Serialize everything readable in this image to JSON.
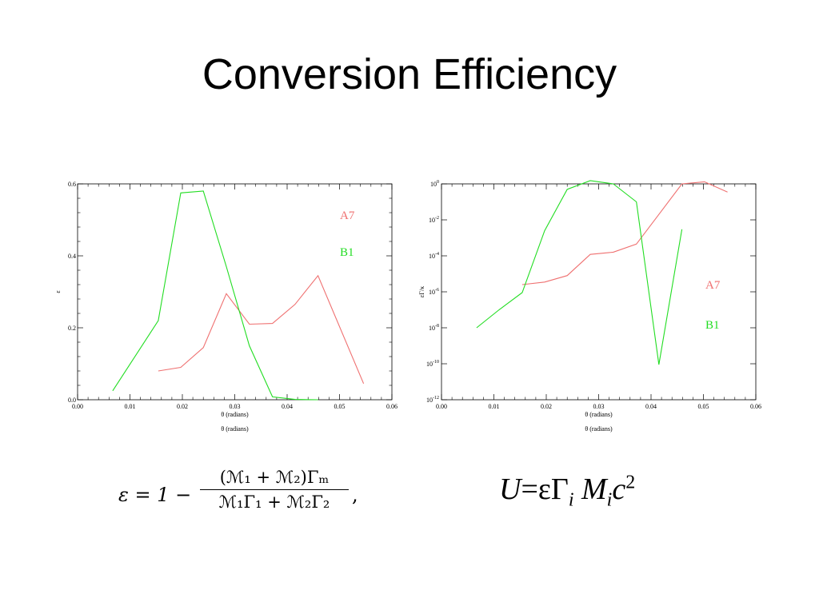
{
  "slide": {
    "title": "Conversion Efficiency"
  },
  "colors": {
    "A7": "#ef7070",
    "B1": "#22dd22",
    "axis": "#000000"
  },
  "chart_data": [
    {
      "type": "line",
      "xlabel": "θ (radians)",
      "xlabel_below": "θ (radians)",
      "ylabel": "ε",
      "xlim": [
        0.0,
        0.06
      ],
      "ylim": [
        0.0,
        0.6
      ],
      "x_ticks": [
        "0.00",
        "0.01",
        "0.02",
        "0.03",
        "0.04",
        "0.05",
        "0.06"
      ],
      "y_ticks": [
        "0.0",
        "0.2",
        "0.4",
        "0.6"
      ],
      "legend": [
        "A7",
        "B1"
      ],
      "series": [
        {
          "name": "A7",
          "x": [
            0.0154,
            0.0197,
            0.024,
            0.0284,
            0.0328,
            0.0372,
            0.0415,
            0.0459,
            0.0546
          ],
          "y": [
            0.08,
            0.09,
            0.145,
            0.295,
            0.21,
            0.212,
            0.265,
            0.345,
            0.045
          ]
        },
        {
          "name": "B1",
          "x": [
            0.0067,
            0.0154,
            0.0197,
            0.024,
            0.0284,
            0.0328,
            0.0372,
            0.0415,
            0.0459
          ],
          "y": [
            0.025,
            0.22,
            0.575,
            0.58,
            0.37,
            0.15,
            0.008,
            0.001,
            0.0
          ]
        }
      ]
    },
    {
      "type": "line",
      "yscale": "log",
      "xlabel": "θ (radians)",
      "xlabel_below": "θ (radians)",
      "ylabel": "εΓ/κ",
      "xlim": [
        0.0,
        0.06
      ],
      "ylim": [
        1e-12,
        1
      ],
      "x_ticks": [
        "0.00",
        "0.01",
        "0.02",
        "0.03",
        "0.04",
        "0.05",
        "0.06"
      ],
      "y_ticks": [
        "10^0",
        "10^-2",
        "10^-4",
        "10^-6",
        "10^-8",
        "10^-10",
        "10^-12"
      ],
      "legend": [
        "A7",
        "B1"
      ],
      "series": [
        {
          "name": "A7",
          "x": [
            0.0154,
            0.0197,
            0.024,
            0.0284,
            0.0328,
            0.0372,
            0.0415,
            0.0459,
            0.0502,
            0.0546
          ],
          "y": [
            2.5e-06,
            3.5e-06,
            8e-06,
            0.00012,
            0.00016,
            0.00045,
            0.02,
            1.0,
            1.3,
            0.35
          ]
        },
        {
          "name": "B1",
          "x": [
            0.0067,
            0.011,
            0.0154,
            0.0197,
            0.024,
            0.0284,
            0.0328,
            0.0372,
            0.0415,
            0.0459
          ],
          "y": [
            1e-08,
            1e-07,
            9e-07,
            0.0025,
            0.5,
            1.5,
            1.0,
            0.1,
            9e-11,
            0.003
          ]
        }
      ]
    }
  ],
  "formulas": {
    "efficiency": {
      "lhs": "ε = 1 −",
      "numerator": "(ℳ₁ + ℳ₂)Γₘ",
      "denominator": "ℳ₁Γ₁ + ℳ₂Γ₂",
      "tail": ","
    },
    "energy": {
      "U": "U",
      "eq": "=εΓ",
      "i1": "i",
      "M": "M",
      "i2": "i",
      "c": "c",
      "exp": "2"
    }
  }
}
